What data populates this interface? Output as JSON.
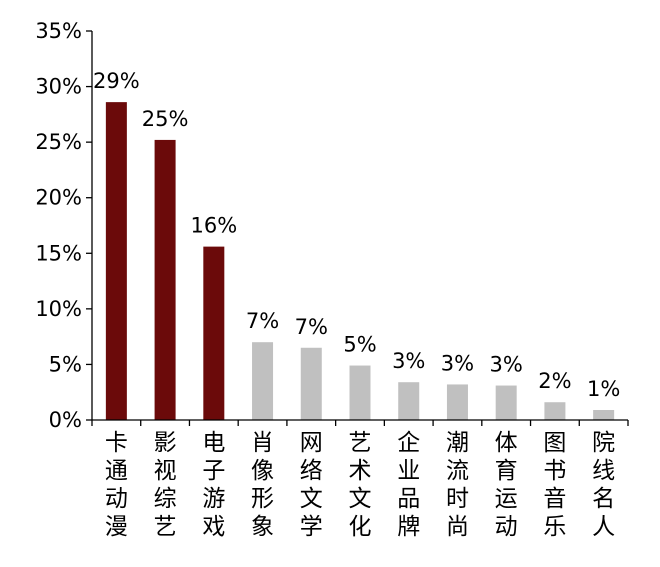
{
  "chart_data": {
    "type": "bar",
    "categories": [
      "卡通动漫",
      "影视综艺",
      "电子游戏",
      "肖像形象",
      "网络文学",
      "艺术文化",
      "企业品牌",
      "潮流时尚",
      "体育运动",
      "图书音乐",
      "院线名人"
    ],
    "values": [
      28.6,
      25.2,
      15.6,
      7.0,
      6.5,
      4.9,
      3.4,
      3.2,
      3.1,
      1.6,
      0.9
    ],
    "data_labels": [
      "29%",
      "25%",
      "16%",
      "7%",
      "7%",
      "5%",
      "3%",
      "3%",
      "3%",
      "2%",
      "1%"
    ],
    "highlight_count": 3,
    "colors": {
      "highlight": "#6B0A0A",
      "normal": "#C0C0C0"
    },
    "ylim": [
      0,
      35
    ],
    "yticks": [
      0,
      5,
      10,
      15,
      20,
      25,
      30,
      35
    ],
    "ytick_labels": [
      "0%",
      "5%",
      "10%",
      "15%",
      "20%",
      "25%",
      "30%",
      "35%"
    ],
    "grid": false,
    "legend": "none",
    "title": "",
    "xlabel": "",
    "ylabel": ""
  }
}
